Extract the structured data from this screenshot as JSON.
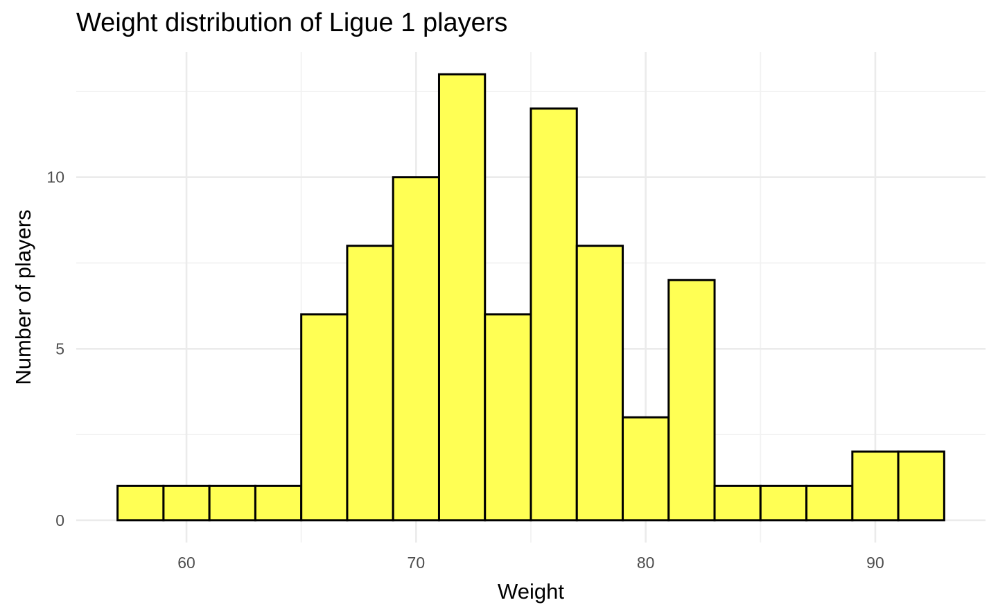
{
  "chart_data": {
    "type": "bar",
    "title": "Weight distribution of Ligue 1 players",
    "xlabel": "Weight",
    "ylabel": "Number of players",
    "bin_width": 2,
    "bins": [
      {
        "start": 57,
        "end": 59,
        "count": 1
      },
      {
        "start": 59,
        "end": 61,
        "count": 1
      },
      {
        "start": 61,
        "end": 63,
        "count": 1
      },
      {
        "start": 63,
        "end": 65,
        "count": 1
      },
      {
        "start": 65,
        "end": 67,
        "count": 6
      },
      {
        "start": 67,
        "end": 69,
        "count": 8
      },
      {
        "start": 69,
        "end": 71,
        "count": 10
      },
      {
        "start": 71,
        "end": 73,
        "count": 13
      },
      {
        "start": 73,
        "end": 75,
        "count": 6
      },
      {
        "start": 75,
        "end": 77,
        "count": 12
      },
      {
        "start": 77,
        "end": 79,
        "count": 8
      },
      {
        "start": 79,
        "end": 81,
        "count": 3
      },
      {
        "start": 81,
        "end": 83,
        "count": 7
      },
      {
        "start": 83,
        "end": 85,
        "count": 1
      },
      {
        "start": 85,
        "end": 87,
        "count": 1
      },
      {
        "start": 87,
        "end": 89,
        "count": 1
      },
      {
        "start": 89,
        "end": 91,
        "count": 2
      },
      {
        "start": 91,
        "end": 93,
        "count": 2
      }
    ],
    "xlim": [
      55.2,
      94.8
    ],
    "ylim": [
      -0.65,
      13.65
    ],
    "xticks": [
      60,
      70,
      80,
      90
    ],
    "xtick_labels": [
      "60",
      "70",
      "80",
      "90"
    ],
    "yticks": [
      0,
      5,
      10
    ],
    "ytick_labels": [
      "0",
      "5",
      "10"
    ],
    "x_minor_ticks": [
      55,
      65,
      75,
      85,
      95
    ],
    "y_minor_ticks": [
      2.5,
      7.5,
      12.5
    ],
    "grid": true,
    "legend": false,
    "colors": {
      "bar_fill": "#ffff54",
      "bar_outline": "#000000",
      "grid_major": "#ebebeb",
      "grid_minor": "#f2f2f2",
      "tick_text": "#4d4d4d"
    }
  }
}
